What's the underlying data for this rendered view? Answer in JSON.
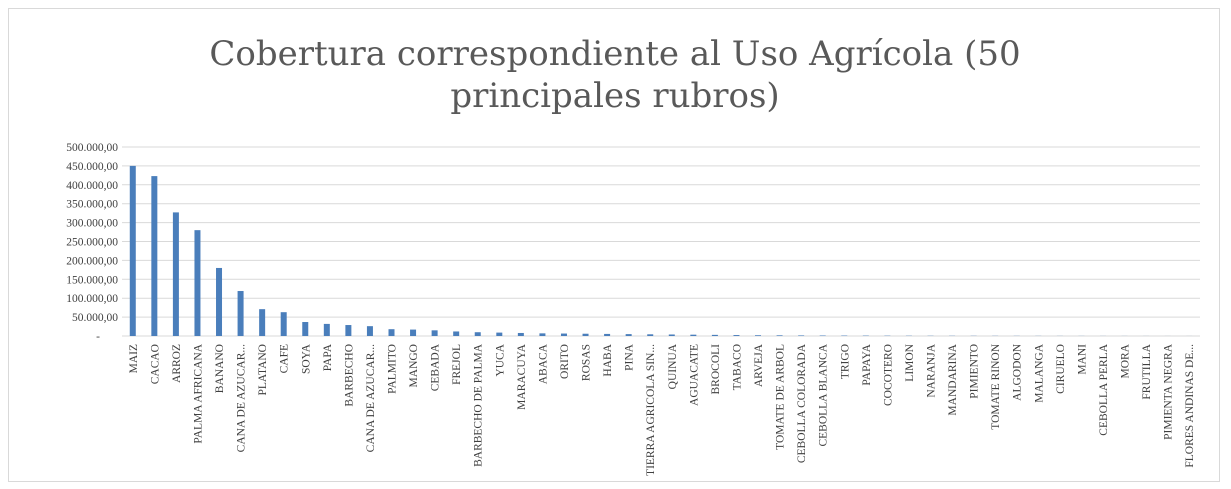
{
  "chart_data": {
    "type": "bar",
    "title": "Cobertura correspondiente al Uso Agrícola (50 principales rubros)",
    "categories": [
      "MAIZ",
      "CACAO",
      "ARROZ",
      "PALMA AFRICANA",
      "BANANO",
      "CANA DE AZUCAR...",
      "PLATANO",
      "CAFE",
      "SOYA",
      "PAPA",
      "BARBECHO",
      "CANA DE AZUCAR...",
      "PALMITO",
      "MANGO",
      "CEBADA",
      "FREJOL",
      "BARBECHO DE PALMA",
      "YUCA",
      "MARACUYA",
      "ABACA",
      "ORITO",
      "ROSAS",
      "HABA",
      "PINA",
      "TIERRA AGRICOLA SIN...",
      "QUINUA",
      "AGUACATE",
      "BROCOLI",
      "TABACO",
      "ARVEJA",
      "TOMATE DE ARBOL",
      "CEBOLLA COLORADA",
      "CEBOLLA BLANCA",
      "TRIGO",
      "PAPAYA",
      "COCOTERO",
      "LIMON",
      "NARANJA",
      "MANDARINA",
      "PIMIENTO",
      "TOMATE RINON",
      "ALGODON",
      "MALANGA",
      "CIRUELO",
      "MANI",
      "CEBOLLA PERLA",
      "MORA",
      "FRUTILLA",
      "PIMIENTA NEGRA",
      "FLORES ANDINAS DE..."
    ],
    "values": [
      450000,
      423000,
      327000,
      280000,
      180000,
      119000,
      71000,
      63000,
      37000,
      32000,
      29000,
      26000,
      18000,
      17000,
      15000,
      12000,
      10000,
      9000,
      8000,
      7000,
      6500,
      6000,
      5500,
      5000,
      4500,
      4000,
      3500,
      3000,
      2500,
      2000,
      1800,
      1500,
      1300,
      1100,
      1000,
      800,
      700,
      600,
      550,
      500,
      450,
      400,
      350,
      300,
      250,
      200,
      180,
      150,
      120,
      100
    ],
    "color": "#4a7ebb",
    "ylim": [
      0,
      500000
    ],
    "yticks": [
      {
        "value": 0,
        "label": "-"
      },
      {
        "value": 50000,
        "label": "50.000,00"
      },
      {
        "value": 100000,
        "label": "100.000,00"
      },
      {
        "value": 150000,
        "label": "150.000,00"
      },
      {
        "value": 200000,
        "label": "200.000,00"
      },
      {
        "value": 250000,
        "label": "250.000,00"
      },
      {
        "value": 300000,
        "label": "300.000,00"
      },
      {
        "value": 350000,
        "label": "350.000,00"
      },
      {
        "value": 400000,
        "label": "400.000,00"
      },
      {
        "value": 450000,
        "label": "450.000,00"
      },
      {
        "value": 500000,
        "label": "500.000,00"
      }
    ],
    "grid": true
  }
}
